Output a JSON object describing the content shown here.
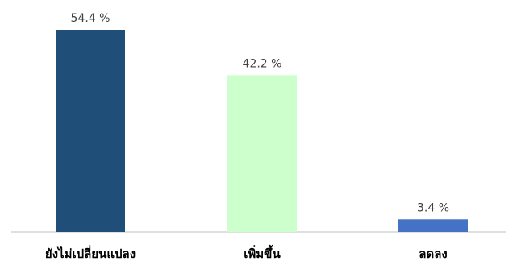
{
  "chart_data": {
    "type": "bar",
    "title": "",
    "xlabel": "",
    "ylabel": "",
    "categories": [
      "ยังไม่เปลี่ยนแปลง",
      "เพิ่มขึ้น",
      "ลดลง"
    ],
    "values": [
      54.4,
      42.2,
      3.4
    ],
    "value_labels": [
      "54.4 %",
      "42.2 %",
      "3.4 %"
    ],
    "colors": [
      "#1f4e79",
      "#ccffcc",
      "#4472c4"
    ],
    "ylim": [
      0,
      54.4
    ],
    "grid": false,
    "legend": "none"
  }
}
